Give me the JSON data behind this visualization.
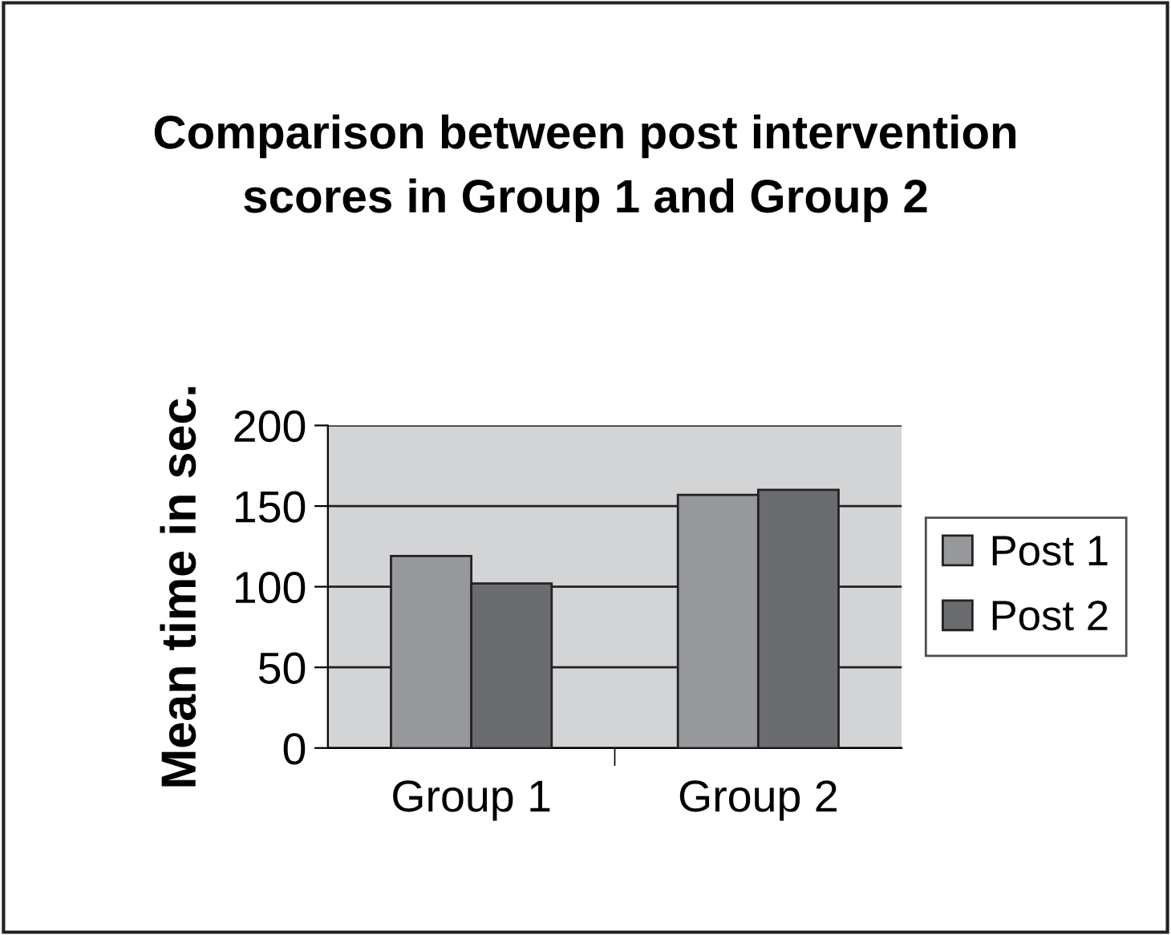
{
  "chart_data": {
    "type": "bar",
    "title": "Comparison between post intervention scores in Group 1 and Group 2",
    "ylabel": "Mean time in sec.",
    "categories": [
      "Group 1",
      "Group 2"
    ],
    "series": [
      {
        "name": "Post 1",
        "color": "#97989c",
        "values": [
          119,
          157
        ]
      },
      {
        "name": "Post 2",
        "color": "#6b6c70",
        "values": [
          102,
          160
        ]
      }
    ],
    "ylim": [
      0,
      200
    ],
    "yticks": [
      0,
      50,
      100,
      150,
      200
    ],
    "grid": "y",
    "legend": "right"
  }
}
